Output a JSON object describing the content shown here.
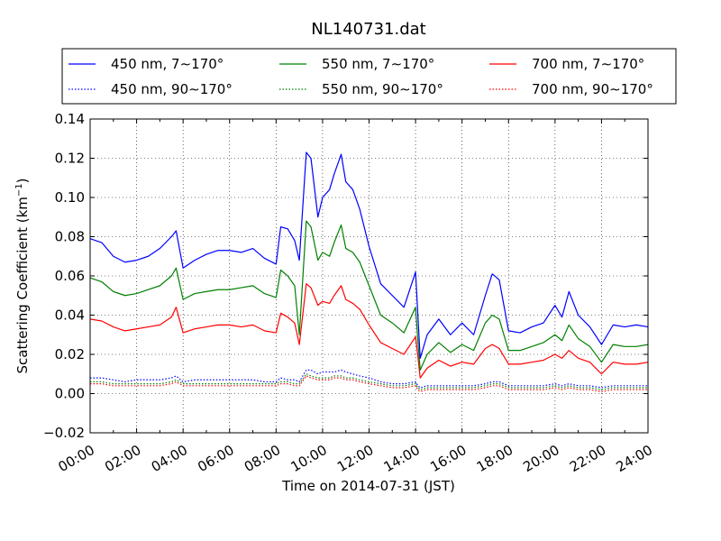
{
  "chart_data": {
    "type": "line",
    "title": "NL140731.dat",
    "xlabel": "Time on 2014-07-31 (JST)",
    "ylabel": "Scattering Coefficient (km",
    "ylabel_sup": "−1",
    "ylabel_end": ")",
    "xlim": [
      "00:00",
      "24:00"
    ],
    "ylim": [
      -0.02,
      0.14
    ],
    "grid": true,
    "legend_position": "top",
    "x_ticks": [
      "00:00",
      "02:00",
      "04:00",
      "06:00",
      "08:00",
      "10:00",
      "12:00",
      "14:00",
      "16:00",
      "18:00",
      "20:00",
      "22:00",
      "24:00"
    ],
    "y_ticks": [
      "−0.02",
      "0.00",
      "0.02",
      "0.04",
      "0.06",
      "0.08",
      "0.10",
      "0.12",
      "0.14"
    ],
    "x_hours": [
      0,
      0.5,
      1,
      1.5,
      2,
      2.5,
      3,
      3.5,
      3.7,
      4,
      4.5,
      5,
      5.5,
      6,
      6.5,
      7,
      7.5,
      8,
      8.2,
      8.5,
      8.8,
      9,
      9.3,
      9.5,
      9.8,
      10,
      10.3,
      10.5,
      10.8,
      11,
      11.3,
      11.6,
      12,
      12.5,
      13,
      13.5,
      14,
      14.1,
      14.2,
      14.5,
      15,
      15.5,
      16,
      16.5,
      17,
      17.3,
      17.6,
      18,
      18.5,
      19,
      19.5,
      20,
      20.3,
      20.6,
      21,
      21.5,
      22,
      22.5,
      23,
      23.5,
      24
    ],
    "series": [
      {
        "name": "450 nm, 7∼170°",
        "color": "#0000ff",
        "style": "solid",
        "values": [
          0.079,
          0.077,
          0.07,
          0.067,
          0.068,
          0.07,
          0.074,
          0.08,
          0.083,
          0.064,
          0.068,
          0.071,
          0.073,
          0.073,
          0.072,
          0.074,
          0.069,
          0.066,
          0.085,
          0.084,
          0.078,
          0.068,
          0.123,
          0.12,
          0.09,
          0.1,
          0.104,
          0.112,
          0.122,
          0.108,
          0.104,
          0.094,
          0.075,
          0.056,
          0.05,
          0.044,
          0.062,
          0.04,
          0.018,
          0.03,
          0.038,
          0.03,
          0.036,
          0.03,
          0.05,
          0.061,
          0.058,
          0.032,
          0.031,
          0.034,
          0.036,
          0.045,
          0.039,
          0.052,
          0.04,
          0.034,
          0.025,
          0.035,
          0.034,
          0.035,
          0.034
        ]
      },
      {
        "name": "550 nm, 7∼170°",
        "color": "#008000",
        "style": "solid",
        "values": [
          0.059,
          0.057,
          0.052,
          0.05,
          0.051,
          0.053,
          0.055,
          0.06,
          0.064,
          0.048,
          0.051,
          0.052,
          0.053,
          0.053,
          0.054,
          0.055,
          0.051,
          0.049,
          0.063,
          0.06,
          0.055,
          0.03,
          0.088,
          0.085,
          0.068,
          0.072,
          0.07,
          0.077,
          0.086,
          0.074,
          0.072,
          0.067,
          0.055,
          0.04,
          0.036,
          0.031,
          0.044,
          0.027,
          0.012,
          0.02,
          0.026,
          0.021,
          0.025,
          0.022,
          0.036,
          0.04,
          0.038,
          0.022,
          0.022,
          0.024,
          0.026,
          0.03,
          0.027,
          0.035,
          0.028,
          0.024,
          0.016,
          0.025,
          0.024,
          0.024,
          0.025
        ]
      },
      {
        "name": "700 nm, 7∼170°",
        "color": "#ff0000",
        "style": "solid",
        "values": [
          0.038,
          0.037,
          0.034,
          0.032,
          0.033,
          0.034,
          0.035,
          0.039,
          0.044,
          0.031,
          0.033,
          0.034,
          0.035,
          0.035,
          0.034,
          0.035,
          0.032,
          0.031,
          0.041,
          0.039,
          0.036,
          0.025,
          0.056,
          0.054,
          0.045,
          0.047,
          0.046,
          0.05,
          0.055,
          0.048,
          0.046,
          0.043,
          0.035,
          0.026,
          0.023,
          0.02,
          0.029,
          0.019,
          0.008,
          0.013,
          0.017,
          0.014,
          0.016,
          0.015,
          0.023,
          0.025,
          0.023,
          0.015,
          0.015,
          0.016,
          0.017,
          0.02,
          0.018,
          0.022,
          0.018,
          0.016,
          0.01,
          0.016,
          0.015,
          0.015,
          0.016
        ]
      },
      {
        "name": "450 nm, 90∼170°",
        "color": "#0000ff",
        "style": "dotted",
        "values": [
          0.008,
          0.008,
          0.007,
          0.006,
          0.007,
          0.007,
          0.007,
          0.008,
          0.009,
          0.006,
          0.007,
          0.007,
          0.007,
          0.007,
          0.007,
          0.007,
          0.006,
          0.006,
          0.008,
          0.007,
          0.007,
          0.006,
          0.012,
          0.012,
          0.01,
          0.011,
          0.011,
          0.011,
          0.012,
          0.011,
          0.01,
          0.009,
          0.008,
          0.006,
          0.005,
          0.005,
          0.006,
          0.004,
          0.003,
          0.004,
          0.004,
          0.004,
          0.004,
          0.004,
          0.005,
          0.006,
          0.006,
          0.004,
          0.004,
          0.004,
          0.004,
          0.005,
          0.004,
          0.005,
          0.004,
          0.004,
          0.003,
          0.004,
          0.004,
          0.004,
          0.004
        ]
      },
      {
        "name": "550 nm, 90∼170°",
        "color": "#008000",
        "style": "dotted",
        "values": [
          0.006,
          0.006,
          0.005,
          0.005,
          0.005,
          0.005,
          0.005,
          0.006,
          0.007,
          0.005,
          0.005,
          0.005,
          0.005,
          0.005,
          0.005,
          0.005,
          0.005,
          0.005,
          0.006,
          0.006,
          0.005,
          0.005,
          0.01,
          0.009,
          0.008,
          0.008,
          0.008,
          0.009,
          0.009,
          0.008,
          0.008,
          0.007,
          0.006,
          0.005,
          0.004,
          0.004,
          0.005,
          0.003,
          0.002,
          0.003,
          0.003,
          0.003,
          0.003,
          0.003,
          0.004,
          0.005,
          0.005,
          0.003,
          0.003,
          0.003,
          0.003,
          0.004,
          0.003,
          0.004,
          0.003,
          0.003,
          0.002,
          0.003,
          0.003,
          0.003,
          0.003
        ]
      },
      {
        "name": "700 nm, 90∼170°",
        "color": "#ff0000",
        "style": "dotted",
        "values": [
          0.005,
          0.005,
          0.004,
          0.004,
          0.004,
          0.004,
          0.004,
          0.005,
          0.006,
          0.004,
          0.004,
          0.004,
          0.004,
          0.004,
          0.004,
          0.004,
          0.004,
          0.004,
          0.005,
          0.005,
          0.004,
          0.004,
          0.009,
          0.008,
          0.007,
          0.007,
          0.007,
          0.008,
          0.008,
          0.007,
          0.007,
          0.006,
          0.005,
          0.004,
          0.003,
          0.003,
          0.004,
          0.002,
          0.001,
          0.002,
          0.002,
          0.002,
          0.002,
          0.002,
          0.003,
          0.004,
          0.004,
          0.002,
          0.002,
          0.002,
          0.002,
          0.003,
          0.002,
          0.003,
          0.002,
          0.002,
          0.001,
          0.002,
          0.002,
          0.002,
          0.002
        ]
      }
    ]
  }
}
